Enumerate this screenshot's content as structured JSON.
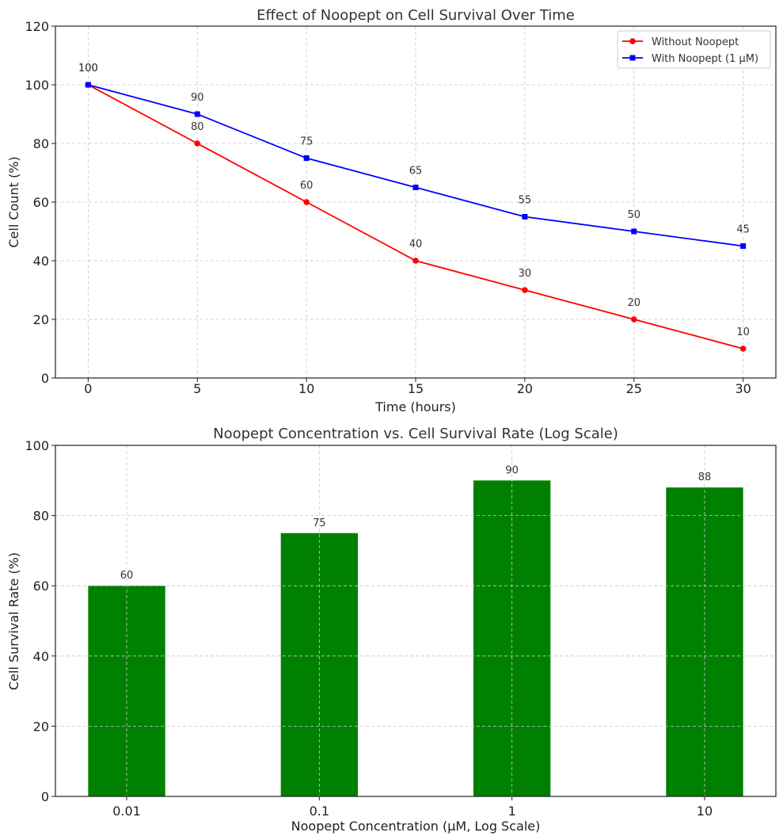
{
  "chart_data": [
    {
      "type": "line",
      "title": "Effect of Noopept on Cell Survival Over Time",
      "xlabel": "Time (hours)",
      "ylabel": "Cell Count (%)",
      "x": [
        0,
        5,
        10,
        15,
        20,
        25,
        30
      ],
      "xticks": [
        0,
        5,
        10,
        15,
        20,
        25,
        30
      ],
      "xlim": [
        -1.5,
        31.5
      ],
      "ylim": [
        0,
        120
      ],
      "yticks": [
        0,
        20,
        40,
        60,
        80,
        100,
        120
      ],
      "grid": true,
      "legend_position": "top-right",
      "series": [
        {
          "name": "Without Noopept",
          "values": [
            100,
            80,
            60,
            40,
            30,
            20,
            10
          ],
          "color": "#ff0000",
          "marker": "circle"
        },
        {
          "name": "With Noopept (1 μM)",
          "values": [
            100,
            90,
            75,
            65,
            55,
            50,
            45
          ],
          "color": "#0000ff",
          "marker": "square"
        }
      ]
    },
    {
      "type": "bar",
      "title": "Noopept Concentration vs. Cell Survival Rate (Log Scale)",
      "xlabel": "Noopept Concentration (μM, Log Scale)",
      "ylabel": "Cell Survival Rate (%)",
      "categories": [
        "0.01",
        "0.1",
        "1",
        "10"
      ],
      "values": [
        60,
        75,
        90,
        88
      ],
      "ylim": [
        0,
        100
      ],
      "yticks": [
        0,
        20,
        40,
        60,
        80,
        100
      ],
      "grid": true,
      "color": "#008000"
    }
  ]
}
